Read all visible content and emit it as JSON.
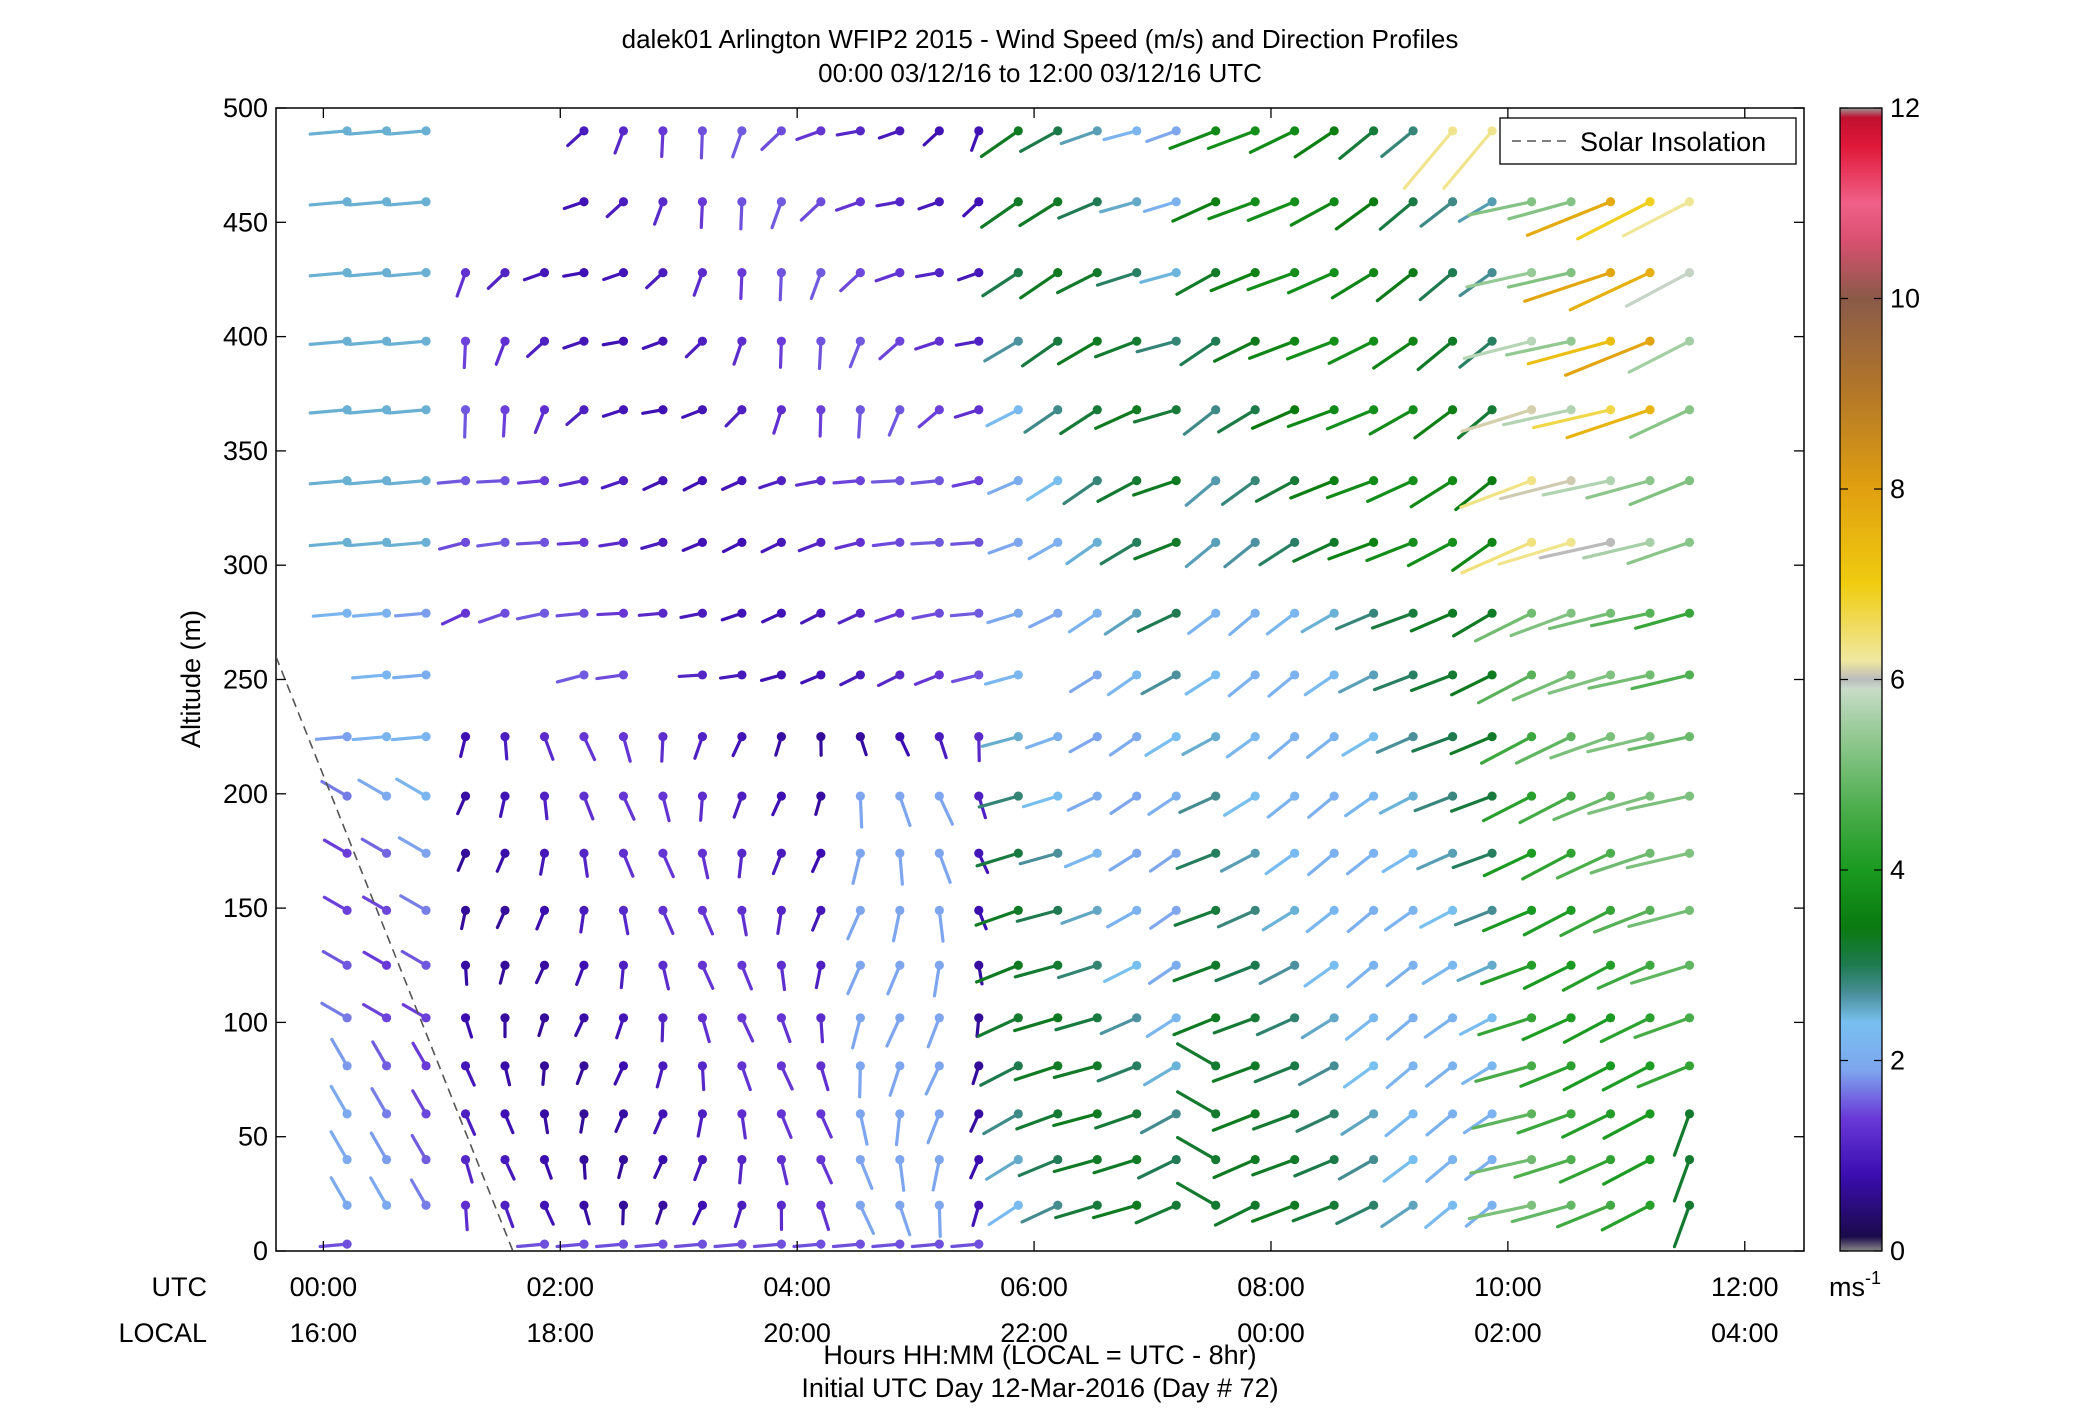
{
  "chart_data": {
    "type": "barb-profile",
    "title": "dalek01 Arlington WFIP2 2015 - Wind Speed (m/s) and Direction Profiles",
    "subtitle": "00:00 03/12/16 to 12:00 03/12/16  UTC",
    "ylabel": "Altitude (m)",
    "xlabel_line1": "Hours HH:MM  (LOCAL = UTC - 8hr)",
    "xlabel_line2": "Initial UTC Day 12-Mar-2016 (Day # 72)",
    "row_label_utc": "UTC",
    "row_label_local": "LOCAL",
    "xlim_hours": [
      -0.4,
      12.5
    ],
    "ylim": [
      0,
      500
    ],
    "yticks": [
      0,
      50,
      100,
      150,
      200,
      250,
      300,
      350,
      400,
      450,
      500
    ],
    "xticks_hours": [
      0,
      2,
      4,
      6,
      8,
      10,
      12
    ],
    "xtick_labels_utc": [
      "00:00",
      "02:00",
      "04:00",
      "06:00",
      "08:00",
      "10:00",
      "12:00"
    ],
    "xtick_labels_local": [
      "16:00",
      "18:00",
      "20:00",
      "22:00",
      "00:00",
      "02:00",
      "04:00"
    ],
    "legend_label": "Solar Insolation",
    "legend_position": "top-right",
    "solar_insolation_line": {
      "x_hours": [
        -0.4,
        1.6
      ],
      "y": [
        260,
        0
      ]
    },
    "colorbar": {
      "label": "ms",
      "label_superscript": "-1",
      "range": [
        0,
        12
      ],
      "ticks": [
        0,
        2,
        4,
        6,
        8,
        10,
        12
      ],
      "tick_labels": [
        "0",
        "2",
        "4",
        "6",
        "8",
        "10",
        "12"
      ],
      "stops": [
        [
          0.0,
          "#888888"
        ],
        [
          0.15,
          "#1a0a4a"
        ],
        [
          0.8,
          "#3b0db0"
        ],
        [
          1.4,
          "#6a3ad8"
        ],
        [
          1.9,
          "#7ea6ee"
        ],
        [
          2.4,
          "#78c0f0"
        ],
        [
          2.7,
          "#4a8f9a"
        ],
        [
          3.0,
          "#1e7a50"
        ],
        [
          3.4,
          "#0a7a10"
        ],
        [
          4.0,
          "#1a9a20"
        ],
        [
          4.6,
          "#48ac48"
        ],
        [
          5.5,
          "#9ccc9c"
        ],
        [
          5.9,
          "#c8dcc8"
        ],
        [
          6.0,
          "#bbbbbb"
        ],
        [
          6.2,
          "#f0e8a0"
        ],
        [
          7.0,
          "#f0cc10"
        ],
        [
          8.0,
          "#e0a010"
        ],
        [
          9.0,
          "#b47828"
        ],
        [
          10.0,
          "#8a5a48"
        ],
        [
          10.6,
          "#d85070"
        ],
        [
          11.0,
          "#f06088"
        ],
        [
          11.6,
          "#e01838"
        ],
        [
          11.9,
          "#c01030"
        ],
        [
          12.0,
          "#999999"
        ]
      ]
    },
    "altitudes_m": [
      3,
      20,
      40,
      60,
      81,
      102,
      125,
      149,
      174,
      199,
      225,
      252,
      279,
      310,
      337,
      368,
      398,
      428,
      459,
      490
    ],
    "time_step_minutes": 20,
    "notes_missing": "speed -1 marks a missing observation"
  }
}
